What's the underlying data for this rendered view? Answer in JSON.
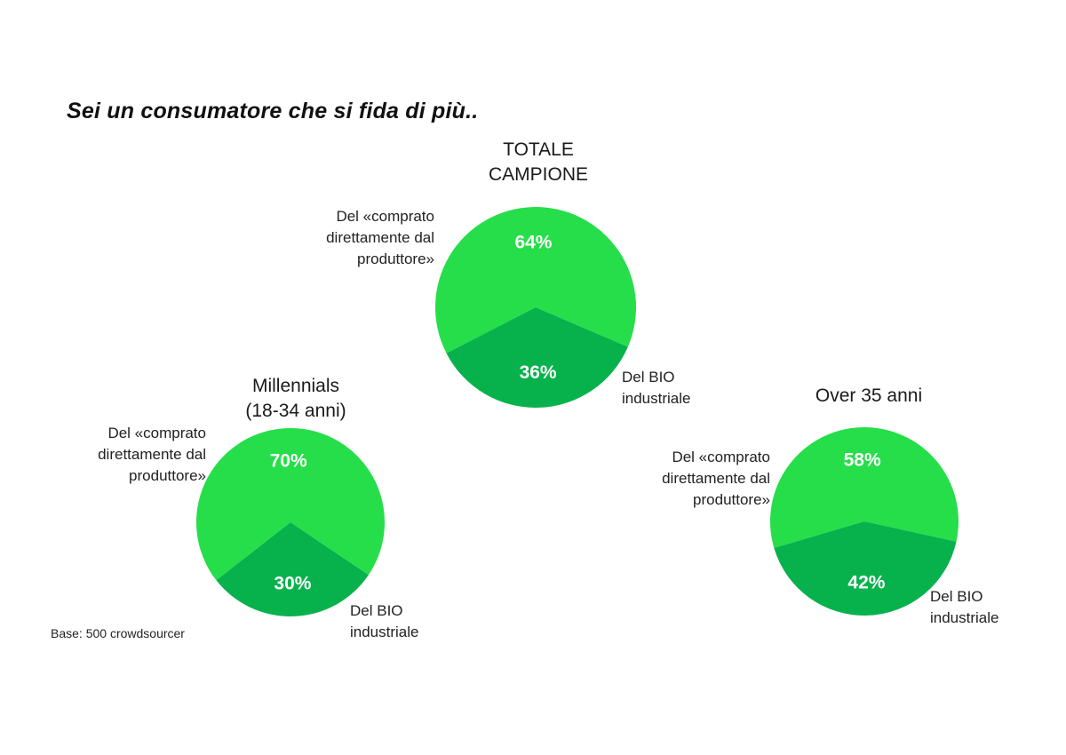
{
  "title": "Sei un consumatore che si fida di più..",
  "base_note": "Base: 500 crowdsourcer",
  "colors": {
    "slice_a": "#26de4a",
    "slice_b": "#07b24c"
  },
  "chart_data": [
    {
      "type": "pie",
      "title": "TOTALE\nCAMPIONE",
      "slices": [
        {
          "label": "Del «comprato\ndirettamente dal\nproduttore»",
          "value": 64,
          "value_label": "64%"
        },
        {
          "label": "Del BIO\nindustriale",
          "value": 36,
          "value_label": "36%"
        }
      ]
    },
    {
      "type": "pie",
      "title": "Millennials\n(18-34 anni)",
      "slices": [
        {
          "label": "Del «comprato\ndirettamente dal\nproduttore»",
          "value": 70,
          "value_label": "70%"
        },
        {
          "label": "Del BIO\nindustriale",
          "value": 30,
          "value_label": "30%"
        }
      ]
    },
    {
      "type": "pie",
      "title": "Over 35 anni",
      "slices": [
        {
          "label": "Del «comprato\ndirettamente dal\nproduttore»",
          "value": 58,
          "value_label": "58%"
        },
        {
          "label": "Del BIO\nindustriale",
          "value": 42,
          "value_label": "42%"
        }
      ]
    }
  ]
}
